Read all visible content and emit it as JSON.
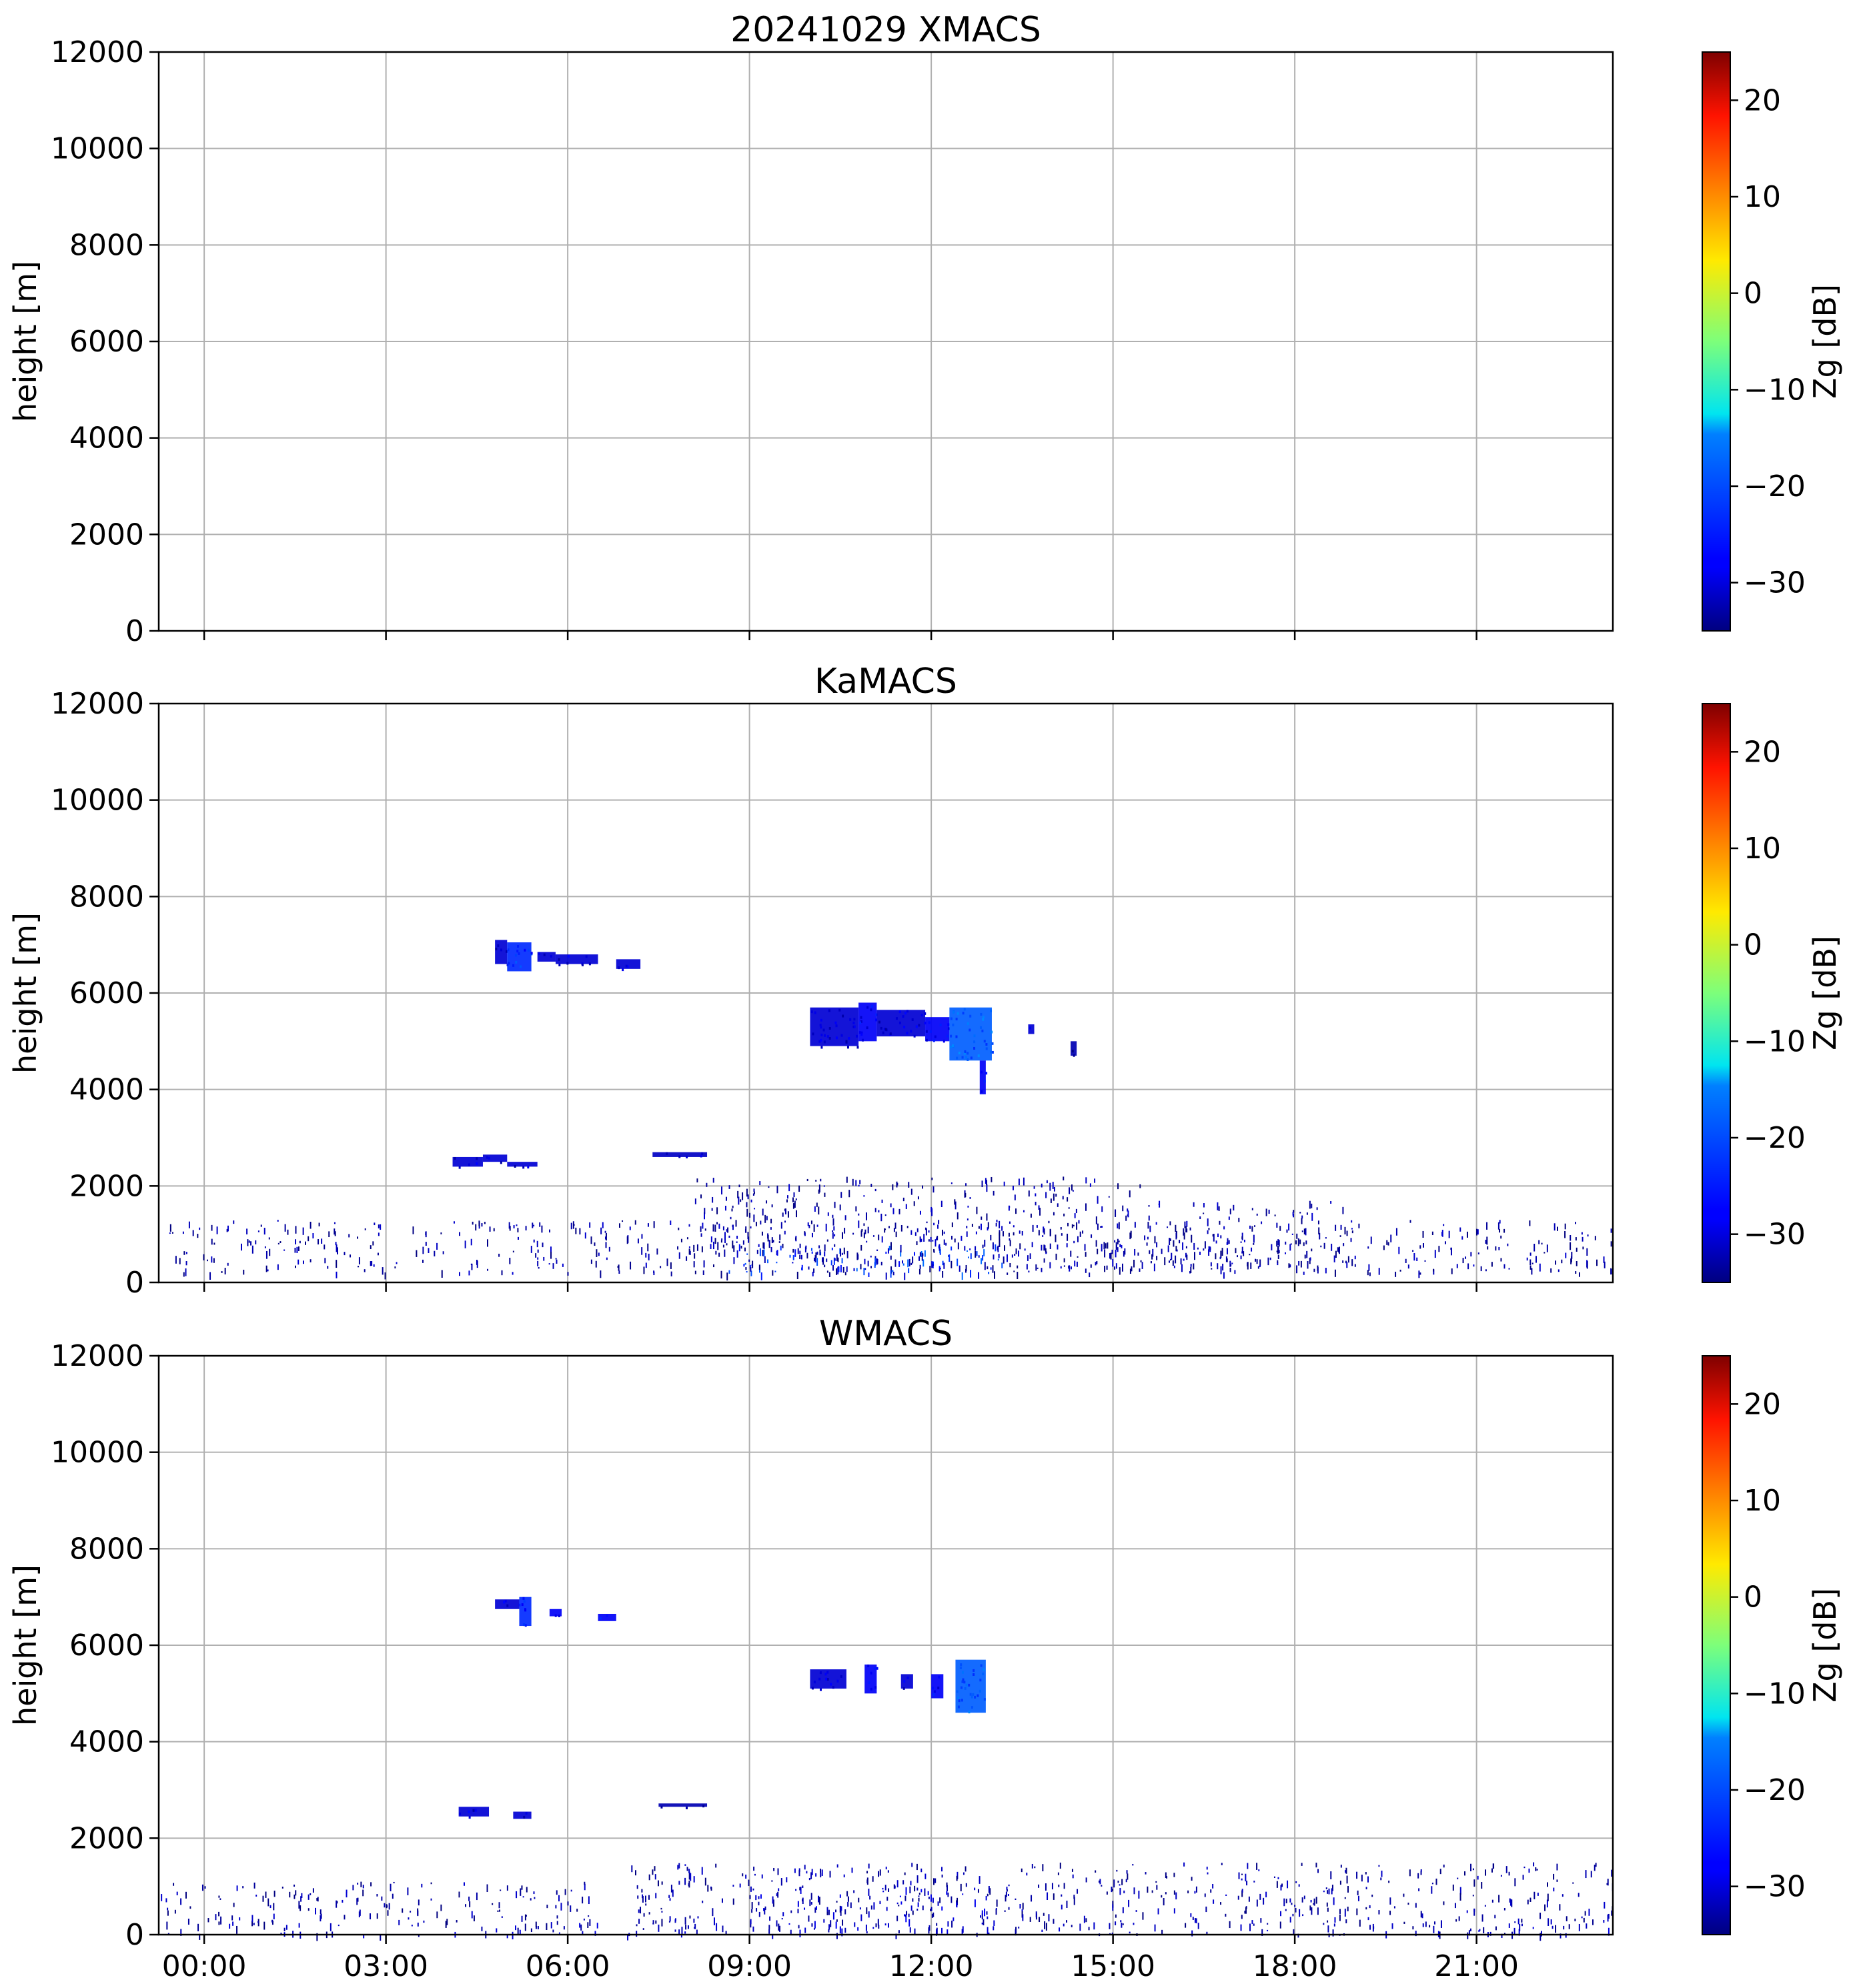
{
  "chart_data": [
    {
      "type": "heatmap",
      "title": "20241029 XMACS",
      "ylabel": "height [m]",
      "ylim": [
        0,
        12000
      ],
      "yticks": [
        "0",
        "2000",
        "4000",
        "6000",
        "8000",
        "10000",
        "12000"
      ],
      "xlim_hours": [
        -0.75,
        23.25
      ],
      "xtick_hours": [
        0,
        3,
        6,
        9,
        12,
        15,
        18,
        21
      ],
      "xtick_labels": [],
      "grid": true,
      "colorbar": {
        "label": "Zg [dB]",
        "range": [
          -35,
          25
        ],
        "ticks": [
          "−30",
          "−20",
          "−10",
          "0",
          "10",
          "20"
        ]
      },
      "echoes": []
    },
    {
      "type": "heatmap",
      "title": "KaMACS",
      "ylabel": "height [m]",
      "ylim": [
        0,
        12000
      ],
      "yticks": [
        "0",
        "2000",
        "4000",
        "6000",
        "8000",
        "10000",
        "12000"
      ],
      "xlim_hours": [
        -0.75,
        23.25
      ],
      "xtick_hours": [
        0,
        3,
        6,
        9,
        12,
        15,
        18,
        21
      ],
      "xtick_labels": [],
      "grid": true,
      "colorbar": {
        "label": "Zg [dB]",
        "range": [
          -35,
          25
        ],
        "ticks": [
          "−30",
          "−20",
          "−10",
          "0",
          "10",
          "20"
        ]
      },
      "echoes": [
        {
          "t0": 4.8,
          "t1": 5.0,
          "h0": 6600,
          "h1": 7100,
          "z": -30
        },
        {
          "t0": 5.0,
          "t1": 5.4,
          "h0": 6450,
          "h1": 7050,
          "z": -25
        },
        {
          "t0": 5.5,
          "t1": 5.8,
          "h0": 6650,
          "h1": 6850,
          "z": -30
        },
        {
          "t0": 5.8,
          "t1": 6.5,
          "h0": 6600,
          "h1": 6800,
          "z": -30
        },
        {
          "t0": 6.8,
          "t1": 7.2,
          "h0": 6500,
          "h1": 6700,
          "z": -30
        },
        {
          "t0": 10.0,
          "t1": 10.8,
          "h0": 4900,
          "h1": 5700,
          "z": -30
        },
        {
          "t0": 10.8,
          "t1": 11.1,
          "h0": 5000,
          "h1": 5800,
          "z": -28
        },
        {
          "t0": 11.1,
          "t1": 11.9,
          "h0": 5100,
          "h1": 5650,
          "z": -30
        },
        {
          "t0": 11.9,
          "t1": 12.3,
          "h0": 5000,
          "h1": 5500,
          "z": -28
        },
        {
          "t0": 12.3,
          "t1": 13.0,
          "h0": 4600,
          "h1": 5700,
          "z": -22
        },
        {
          "t0": 12.8,
          "t1": 12.9,
          "h0": 3900,
          "h1": 4600,
          "z": -28
        },
        {
          "t0": 13.6,
          "t1": 13.7,
          "h0": 5150,
          "h1": 5350,
          "z": -30
        },
        {
          "t0": 14.3,
          "t1": 14.4,
          "h0": 4700,
          "h1": 5000,
          "z": -32
        },
        {
          "t0": 4.1,
          "t1": 4.6,
          "h0": 2400,
          "h1": 2600,
          "z": -30
        },
        {
          "t0": 4.6,
          "t1": 5.0,
          "h0": 2500,
          "h1": 2650,
          "z": -30
        },
        {
          "t0": 5.0,
          "t1": 5.5,
          "h0": 2400,
          "h1": 2500,
          "z": -30
        },
        {
          "t0": 7.4,
          "t1": 8.3,
          "h0": 2600,
          "h1": 2700,
          "z": -31
        },
        {
          "t0": -0.75,
          "t1": 23.25,
          "h0": 200,
          "h1": 1300,
          "z": -33
        },
        {
          "t0": 8.5,
          "t1": 13.5,
          "h0": 200,
          "h1": 800,
          "z": -24
        },
        {
          "t0": 8.0,
          "t1": 15.5,
          "h0": 200,
          "h1": 2200,
          "z": -33
        },
        {
          "t0": 15.5,
          "t1": 19.0,
          "h0": 300,
          "h1": 1700,
          "z": -33
        }
      ]
    },
    {
      "type": "heatmap",
      "title": "WMACS",
      "ylabel": "height [m]",
      "ylim": [
        0,
        12000
      ],
      "yticks": [
        "0",
        "2000",
        "4000",
        "6000",
        "8000",
        "10000",
        "12000"
      ],
      "xlim_hours": [
        -0.75,
        23.25
      ],
      "xtick_hours": [
        0,
        3,
        6,
        9,
        12,
        15,
        18,
        21
      ],
      "xtick_labels": [
        "00:00",
        "03:00",
        "06:00",
        "09:00",
        "12:00",
        "15:00",
        "18:00",
        "21:00"
      ],
      "grid": true,
      "colorbar": {
        "label": "Zg [dB]",
        "range": [
          -35,
          25
        ],
        "ticks": [
          "−30",
          "−20",
          "−10",
          "0",
          "10",
          "20"
        ]
      },
      "echoes": [
        {
          "t0": 4.8,
          "t1": 5.2,
          "h0": 6750,
          "h1": 6950,
          "z": -30
        },
        {
          "t0": 5.2,
          "t1": 5.4,
          "h0": 6400,
          "h1": 7000,
          "z": -25
        },
        {
          "t0": 5.7,
          "t1": 5.9,
          "h0": 6600,
          "h1": 6750,
          "z": -28
        },
        {
          "t0": 6.5,
          "t1": 6.8,
          "h0": 6500,
          "h1": 6650,
          "z": -28
        },
        {
          "t0": 10.0,
          "t1": 10.6,
          "h0": 5100,
          "h1": 5500,
          "z": -30
        },
        {
          "t0": 10.9,
          "t1": 11.1,
          "h0": 5000,
          "h1": 5600,
          "z": -28
        },
        {
          "t0": 11.5,
          "t1": 11.7,
          "h0": 5100,
          "h1": 5400,
          "z": -30
        },
        {
          "t0": 12.0,
          "t1": 12.2,
          "h0": 4900,
          "h1": 5400,
          "z": -28
        },
        {
          "t0": 12.4,
          "t1": 12.9,
          "h0": 4600,
          "h1": 5700,
          "z": -22
        },
        {
          "t0": 4.2,
          "t1": 4.7,
          "h0": 2450,
          "h1": 2650,
          "z": -30
        },
        {
          "t0": 5.1,
          "t1": 5.4,
          "h0": 2400,
          "h1": 2550,
          "z": -30
        },
        {
          "t0": 7.5,
          "t1": 8.3,
          "h0": 2650,
          "h1": 2720,
          "z": -32
        },
        {
          "t0": -0.75,
          "t1": 23.25,
          "h0": 0,
          "h1": 250,
          "z": -32
        },
        {
          "t0": -0.75,
          "t1": 6.5,
          "h0": 250,
          "h1": 1100,
          "z": -33
        },
        {
          "t0": 7.0,
          "t1": 23.25,
          "h0": 200,
          "h1": 1500,
          "z": -33
        },
        {
          "t0": 9.0,
          "t1": 13.5,
          "h0": 100,
          "h1": 1000,
          "z": -31
        }
      ]
    }
  ]
}
